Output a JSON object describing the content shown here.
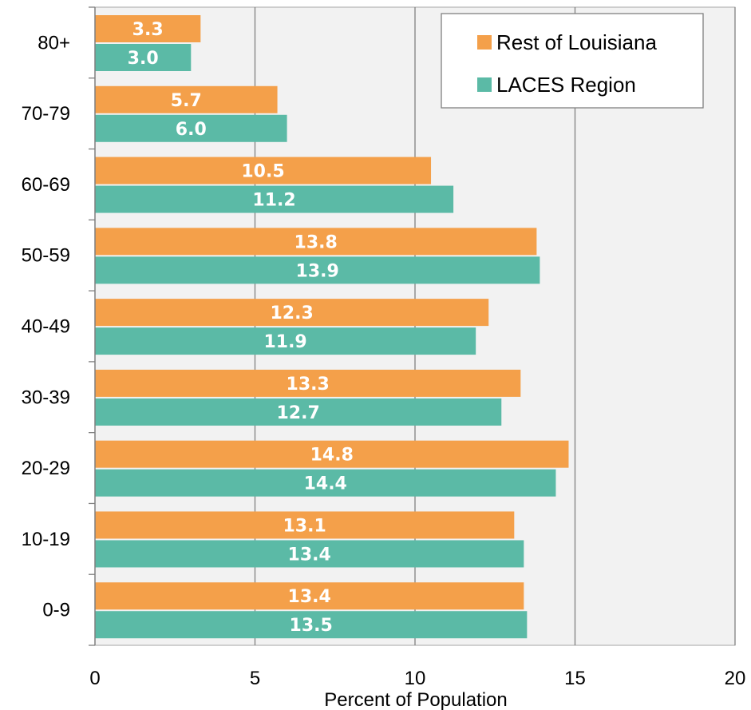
{
  "chart_data": {
    "type": "bar",
    "orientation": "horizontal",
    "categories": [
      "0-9",
      "10-19",
      "20-29",
      "30-39",
      "40-49",
      "50-59",
      "60-69",
      "70-79",
      "80+"
    ],
    "series": [
      {
        "name": "Rest of Louisiana",
        "color": "#F4A04A",
        "values": [
          13.4,
          13.1,
          14.8,
          13.3,
          12.3,
          13.8,
          10.5,
          5.7,
          3.3
        ],
        "labels": [
          "13.4",
          "13.1",
          "14.8",
          "13.3",
          "12.3",
          "13.8",
          "10.5",
          "5.7",
          "3.3"
        ]
      },
      {
        "name": "LACES Region",
        "color": "#5BBAA6",
        "values": [
          13.5,
          13.4,
          14.4,
          12.7,
          11.9,
          13.9,
          11.2,
          6.0,
          3.0
        ],
        "labels": [
          "13.5",
          "13.4",
          "14.4",
          "12.7",
          "11.9",
          "13.9",
          "11.2",
          "6.0",
          "3.0"
        ]
      }
    ],
    "xlabel": "Percent of Population",
    "ylabel": "",
    "title": "",
    "xlim": [
      0,
      20
    ],
    "xticks": [
      "0",
      "5",
      "10",
      "15",
      "20"
    ],
    "grid": true,
    "legend_position": "top-right",
    "plot_background": "#F2F2F2",
    "gridline_color": "#808080"
  }
}
